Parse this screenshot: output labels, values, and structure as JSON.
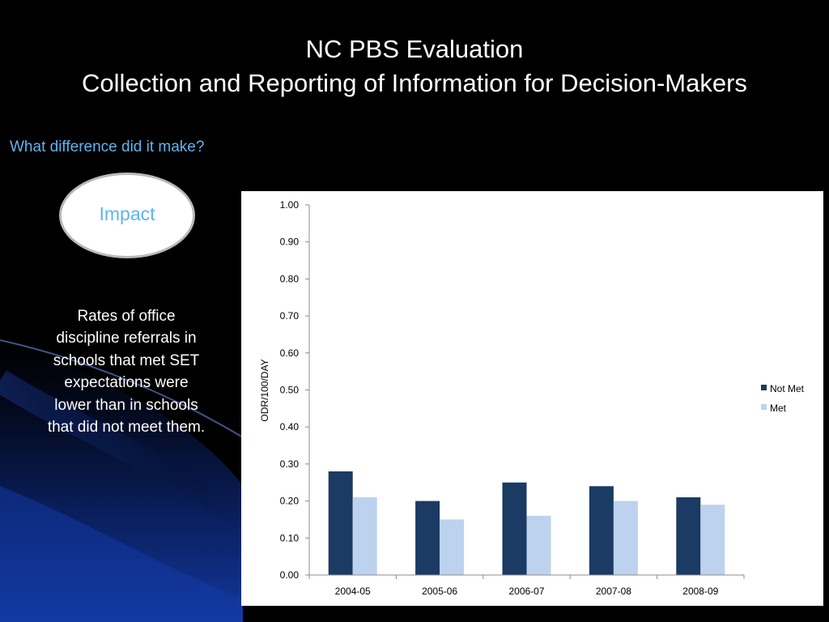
{
  "slide": {
    "title_line1": "NC PBS Evaluation",
    "title_line2": "Collection and Reporting of Information for Decision-Makers",
    "question": "What difference did it make?",
    "impact_label": "Impact",
    "finding": "Rates of office discipline referrals in schools that met SET expectations were lower than in schools that did not meet them."
  },
  "colors": {
    "background": "#000000",
    "accent_text": "#5fb4f0",
    "not_met": "#1b3a64",
    "met": "#bdd2ee"
  },
  "chart_data": {
    "type": "bar",
    "title": "",
    "xlabel": "",
    "ylabel": "ODR/100/DAY",
    "categories": [
      "2004-05",
      "2005-06",
      "2006-07",
      "2007-08",
      "2008-09"
    ],
    "series": [
      {
        "name": "Not Met",
        "values": [
          0.28,
          0.2,
          0.25,
          0.24,
          0.21
        ],
        "color": "#1b3a64"
      },
      {
        "name": "Met",
        "values": [
          0.21,
          0.15,
          0.16,
          0.2,
          0.19
        ],
        "color": "#bdd2ee"
      }
    ],
    "ylim": [
      0,
      1.0
    ],
    "yticks": [
      "0.00",
      "0.10",
      "0.20",
      "0.30",
      "0.40",
      "0.50",
      "0.60",
      "0.70",
      "0.80",
      "0.90",
      "1.00"
    ],
    "grid": false,
    "legend_position": "right"
  }
}
